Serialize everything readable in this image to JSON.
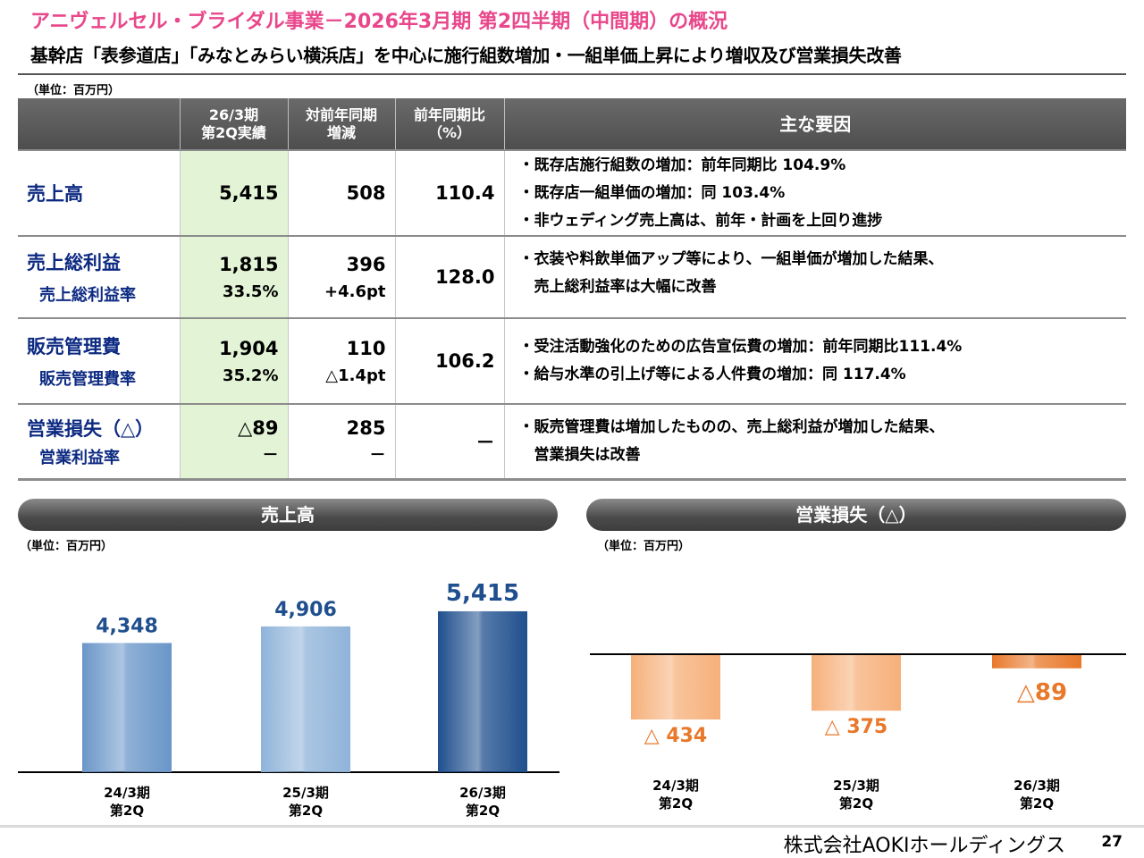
{
  "header": {
    "title": "アニヴェルセル・ブライダル事業－2026年3月期 第2四半期（中間期）の概況",
    "subtitle": "基幹店「表参道店」「みなとみらい横浜店」を中心に施行組数増加・一組単価上昇により増収及び営業損失改善"
  },
  "table": {
    "unit": "（単位：百万円）",
    "columns": [
      "",
      "26/3期\n第2Q実績",
      "対前年同期\n増減",
      "前年同期比\n（%）",
      "主な要因"
    ],
    "rows": [
      {
        "label": "売上高",
        "sub_label": "",
        "actual": "5,415",
        "actual_sub": "",
        "change": "508",
        "change_sub": "",
        "ratio": "110.4",
        "factors": [
          "・既存店施行組数の増加：前年同期比 104.9%",
          "・既存店一組単価の増加：同 103.4%",
          "・非ウェディング売上高は、前年・計画を上回り進捗"
        ]
      },
      {
        "label": "売上総利益",
        "sub_label": "売上総利益率",
        "actual": "1,815",
        "actual_sub": "33.5%",
        "change": "396",
        "change_sub": "+4.6pt",
        "ratio": "128.0",
        "factors": [
          "・衣装や料飲単価アップ等により、一組単価が増加した結果、",
          "　売上総利益率は大幅に改善"
        ]
      },
      {
        "label": "販売管理費",
        "sub_label": "販売管理費率",
        "actual": "1,904",
        "actual_sub": "35.2%",
        "change": "110",
        "change_sub": "△1.4pt",
        "ratio": "106.2",
        "factors": [
          "・受注活動強化のための広告宣伝費の増加：前年同期比111.4%",
          "・給与水準の引上げ等による人件費の増加：同 117.4%"
        ]
      },
      {
        "label": "営業損失（△）",
        "sub_label": "営業利益率",
        "actual": "△89",
        "actual_sub": "－",
        "change": "285",
        "change_sub": "－",
        "ratio": "－",
        "factors": [
          "・販売管理費は増加したものの、売上総利益が増加した結果、",
          "　営業損失は改善"
        ]
      }
    ]
  },
  "chart_data": [
    {
      "type": "bar",
      "title": "売上高",
      "unit": "（単位：百万円）",
      "categories": [
        "24/3期\n第2Q",
        "25/3期\n第2Q",
        "26/3期\n第2Q"
      ],
      "values": [
        4348,
        4906,
        5415
      ],
      "value_labels": [
        "4,348",
        "4,906",
        "5,415"
      ],
      "colors": [
        "#6a96c8",
        "#8fb3d9",
        "#1f4f8e"
      ],
      "label_color": "#1f4f8e"
    },
    {
      "type": "bar",
      "title": "営業損失（△）",
      "unit": "（単位：百万円）",
      "categories": [
        "24/3期\n第2Q",
        "25/3期\n第2Q",
        "26/3期\n第2Q"
      ],
      "values": [
        -434,
        -375,
        -89
      ],
      "value_labels": [
        "△ 434",
        "△ 375",
        "△89"
      ],
      "colors": [
        "#f6b07a",
        "#f6b07a",
        "#e8782a"
      ],
      "label_color": "#e8782a"
    }
  ],
  "footer": {
    "company": "株式会社AOKIホールディングス",
    "page": "27"
  }
}
